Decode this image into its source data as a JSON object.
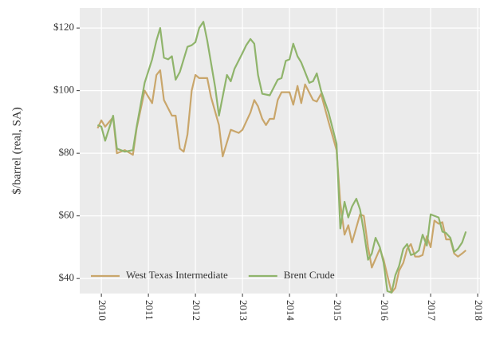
{
  "chart_data": {
    "type": "line",
    "ylabel": "$/barrel (real, SA)",
    "xlim": [
      2009.54,
      2018.05
    ],
    "xticks": [
      2010,
      2011,
      2012,
      2013,
      2014,
      2015,
      2016,
      2017,
      2018
    ],
    "ylim": [
      35.2,
      126.4
    ],
    "yticks": [
      {
        "value": 40,
        "label": "$40"
      },
      {
        "value": 60,
        "label": "$60"
      },
      {
        "value": 80,
        "label": "$80"
      },
      {
        "value": 100,
        "label": "$100"
      },
      {
        "value": 120,
        "label": "$120"
      }
    ],
    "grid": true,
    "legend": "bottom-left",
    "series": [
      {
        "name": "West Texas Intermediate",
        "color": "#c9a66b",
        "x": [
          2009.92,
          2010.0,
          2010.08,
          2010.25,
          2010.33,
          2010.5,
          2010.67,
          2010.75,
          2010.92,
          2011.08,
          2011.17,
          2011.25,
          2011.33,
          2011.5,
          2011.58,
          2011.67,
          2011.75,
          2011.83,
          2011.92,
          2012.0,
          2012.08,
          2012.25,
          2012.33,
          2012.5,
          2012.58,
          2012.75,
          2012.92,
          2013.0,
          2013.17,
          2013.25,
          2013.33,
          2013.42,
          2013.5,
          2013.58,
          2013.67,
          2013.75,
          2013.83,
          2014.0,
          2014.08,
          2014.17,
          2014.25,
          2014.33,
          2014.5,
          2014.58,
          2014.67,
          2014.83,
          2015.0,
          2015.08,
          2015.17,
          2015.25,
          2015.33,
          2015.5,
          2015.58,
          2015.67,
          2015.75,
          2015.92,
          2016.0,
          2016.08,
          2016.17,
          2016.25,
          2016.33,
          2016.42,
          2016.5,
          2016.58,
          2016.67,
          2016.75,
          2016.83,
          2016.92,
          2017.0,
          2017.08,
          2017.17,
          2017.25,
          2017.33,
          2017.42,
          2017.5,
          2017.58,
          2017.67,
          2017.75
        ],
        "values": [
          88,
          90.5,
          88.5,
          91.5,
          80,
          81,
          79.5,
          88,
          100,
          96,
          105,
          106.5,
          97,
          92,
          92,
          81.5,
          80.5,
          86,
          100,
          105,
          104,
          104,
          98,
          89,
          79,
          87.5,
          86.5,
          87.5,
          93,
          97,
          95,
          91,
          89,
          91,
          91,
          97,
          99.5,
          99.5,
          95.5,
          101.5,
          96,
          102,
          97,
          96.5,
          99,
          90,
          81,
          64,
          54,
          57,
          51.5,
          60.5,
          60,
          50,
          43.5,
          49.5,
          46,
          41,
          35.5,
          37,
          42.5,
          45,
          49.5,
          51,
          47,
          47,
          47.5,
          53.5,
          50,
          58.5,
          57.5,
          58,
          52.5,
          52.5,
          48,
          47,
          48,
          49
        ]
      },
      {
        "name": "Brent Crude",
        "color": "#8fb46b",
        "x": [
          2009.92,
          2010.0,
          2010.08,
          2010.25,
          2010.33,
          2010.5,
          2010.67,
          2010.75,
          2010.92,
          2011.08,
          2011.17,
          2011.25,
          2011.33,
          2011.42,
          2011.5,
          2011.58,
          2011.67,
          2011.83,
          2011.92,
          2012.0,
          2012.08,
          2012.17,
          2012.25,
          2012.42,
          2012.5,
          2012.67,
          2012.75,
          2012.83,
          2013.0,
          2013.08,
          2013.17,
          2013.25,
          2013.33,
          2013.42,
          2013.58,
          2013.75,
          2013.83,
          2013.92,
          2014.0,
          2014.08,
          2014.17,
          2014.25,
          2014.42,
          2014.5,
          2014.58,
          2014.67,
          2014.83,
          2015.0,
          2015.08,
          2015.17,
          2015.25,
          2015.33,
          2015.42,
          2015.5,
          2015.58,
          2015.67,
          2015.75,
          2015.83,
          2015.92,
          2016.0,
          2016.08,
          2016.17,
          2016.25,
          2016.33,
          2016.42,
          2016.5,
          2016.58,
          2016.67,
          2016.75,
          2016.83,
          2016.92,
          2017.0,
          2017.08,
          2017.17,
          2017.25,
          2017.33,
          2017.42,
          2017.5,
          2017.58,
          2017.67,
          2017.75
        ],
        "values": [
          89,
          88.5,
          84,
          92,
          81.5,
          80.5,
          81,
          88.5,
          102.5,
          110,
          116,
          120,
          110.5,
          110,
          111,
          103.5,
          106,
          114,
          114.5,
          115.5,
          120,
          122,
          116,
          101,
          92,
          105,
          103,
          107,
          112,
          114.5,
          116.5,
          115,
          105,
          99,
          98.5,
          103.5,
          104,
          109.5,
          110,
          115,
          111,
          109,
          102.5,
          103,
          105.5,
          100,
          93,
          83,
          56,
          64.5,
          59.5,
          63,
          65.5,
          62,
          55,
          46,
          48,
          53,
          50,
          45,
          36,
          35.5,
          41,
          44,
          49.5,
          51,
          47.5,
          48,
          49,
          54,
          50.5,
          60.5,
          60,
          59.5,
          55,
          54.5,
          53,
          48.5,
          49.5,
          51.5,
          55
        ]
      }
    ]
  }
}
